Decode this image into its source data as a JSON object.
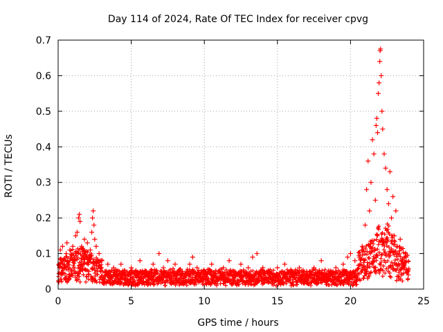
{
  "chart_data": {
    "type": "scatter",
    "title": "Day 114 of 2024, Rate Of TEC Index for receiver cpvg",
    "xlabel": "GPS time / hours",
    "ylabel": "ROTI / TECUs",
    "xlim": [
      0,
      25
    ],
    "ylim": [
      0,
      0.7
    ],
    "x_ticks": [
      0,
      5,
      10,
      15,
      20,
      25
    ],
    "y_ticks": [
      0,
      0.1,
      0.2,
      0.3,
      0.4,
      0.5,
      0.6,
      0.7
    ],
    "x_tick_labels": [
      "0",
      "5",
      "10",
      "15",
      "20",
      "25"
    ],
    "y_tick_labels": [
      "0",
      "0.1",
      "0.2",
      "0.3",
      "0.4",
      "0.5",
      "0.6",
      "0.7"
    ],
    "grid": true,
    "marker": "+",
    "series": [
      {
        "name": "ROTI",
        "color": "#ff0000",
        "points": [
          [
            0.05,
            0.02
          ],
          [
            0.1,
            0.06
          ],
          [
            0.15,
            0.11
          ],
          [
            0.25,
            0.04
          ],
          [
            0.3,
            0.12
          ],
          [
            0.4,
            0.08
          ],
          [
            0.5,
            0.03
          ],
          [
            0.55,
            0.1
          ],
          [
            0.6,
            0.13
          ],
          [
            0.7,
            0.06
          ],
          [
            0.8,
            0.11
          ],
          [
            0.9,
            0.05
          ],
          [
            1.0,
            0.12
          ],
          [
            1.1,
            0.08
          ],
          [
            1.2,
            0.15
          ],
          [
            1.3,
            0.16
          ],
          [
            1.35,
            0.1
          ],
          [
            1.4,
            0.2
          ],
          [
            1.45,
            0.21
          ],
          [
            1.5,
            0.19
          ],
          [
            1.6,
            0.12
          ],
          [
            1.7,
            0.07
          ],
          [
            1.8,
            0.14
          ],
          [
            1.9,
            0.09
          ],
          [
            2.0,
            0.13
          ],
          [
            2.1,
            0.05
          ],
          [
            2.2,
            0.11
          ],
          [
            2.3,
            0.16
          ],
          [
            2.35,
            0.2
          ],
          [
            2.4,
            0.22
          ],
          [
            2.45,
            0.18
          ],
          [
            2.5,
            0.14
          ],
          [
            2.6,
            0.12
          ],
          [
            2.7,
            0.08
          ],
          [
            2.8,
            0.1
          ],
          [
            2.9,
            0.06
          ],
          [
            3.0,
            0.08
          ],
          [
            3.2,
            0.05
          ],
          [
            3.4,
            0.07
          ],
          [
            3.6,
            0.04
          ],
          [
            3.8,
            0.06
          ],
          [
            4.0,
            0.05
          ],
          [
            4.3,
            0.07
          ],
          [
            4.6,
            0.04
          ],
          [
            5.0,
            0.06
          ],
          [
            5.3,
            0.05
          ],
          [
            5.6,
            0.08
          ],
          [
            6.0,
            0.05
          ],
          [
            6.5,
            0.07
          ],
          [
            6.9,
            0.1
          ],
          [
            7.2,
            0.06
          ],
          [
            7.5,
            0.08
          ],
          [
            8.0,
            0.07
          ],
          [
            8.5,
            0.05
          ],
          [
            9.0,
            0.07
          ],
          [
            9.2,
            0.09
          ],
          [
            9.5,
            0.06
          ],
          [
            10.0,
            0.05
          ],
          [
            10.5,
            0.07
          ],
          [
            11.0,
            0.05
          ],
          [
            11.3,
            0.06
          ],
          [
            11.7,
            0.08
          ],
          [
            12.0,
            0.05
          ],
          [
            12.5,
            0.07
          ],
          [
            13.0,
            0.06
          ],
          [
            13.3,
            0.09
          ],
          [
            13.6,
            0.1
          ],
          [
            14.0,
            0.06
          ],
          [
            14.5,
            0.05
          ],
          [
            15.0,
            0.06
          ],
          [
            15.5,
            0.07
          ],
          [
            16.0,
            0.05
          ],
          [
            16.5,
            0.06
          ],
          [
            17.0,
            0.05
          ],
          [
            17.5,
            0.06
          ],
          [
            18.0,
            0.08
          ],
          [
            18.5,
            0.05
          ],
          [
            19.0,
            0.06
          ],
          [
            19.5,
            0.07
          ],
          [
            19.8,
            0.09
          ],
          [
            20.0,
            0.1
          ],
          [
            20.3,
            0.08
          ],
          [
            20.6,
            0.09
          ],
          [
            20.8,
            0.12
          ],
          [
            21.0,
            0.18
          ],
          [
            21.1,
            0.28
          ],
          [
            21.2,
            0.36
          ],
          [
            21.3,
            0.22
          ],
          [
            21.4,
            0.3
          ],
          [
            21.5,
            0.42
          ],
          [
            21.6,
            0.38
          ],
          [
            21.7,
            0.25
          ],
          [
            21.75,
            0.46
          ],
          [
            21.8,
            0.48
          ],
          [
            21.85,
            0.44
          ],
          [
            21.9,
            0.55
          ],
          [
            21.95,
            0.58
          ],
          [
            22.0,
            0.64
          ],
          [
            22.02,
            0.67
          ],
          [
            22.05,
            0.675
          ],
          [
            22.1,
            0.6
          ],
          [
            22.15,
            0.5
          ],
          [
            22.2,
            0.45
          ],
          [
            22.3,
            0.38
          ],
          [
            22.4,
            0.34
          ],
          [
            22.5,
            0.28
          ],
          [
            22.6,
            0.24
          ],
          [
            22.7,
            0.33
          ],
          [
            22.8,
            0.2
          ],
          [
            22.9,
            0.26
          ],
          [
            23.0,
            0.15
          ],
          [
            23.1,
            0.22
          ],
          [
            23.2,
            0.12
          ],
          [
            23.3,
            0.1
          ],
          [
            23.4,
            0.14
          ],
          [
            23.5,
            0.08
          ],
          [
            23.6,
            0.07
          ],
          [
            23.7,
            0.06
          ],
          [
            23.8,
            0.09
          ],
          [
            23.9,
            0.05
          ],
          [
            23.95,
            0.04
          ]
        ]
      }
    ]
  }
}
